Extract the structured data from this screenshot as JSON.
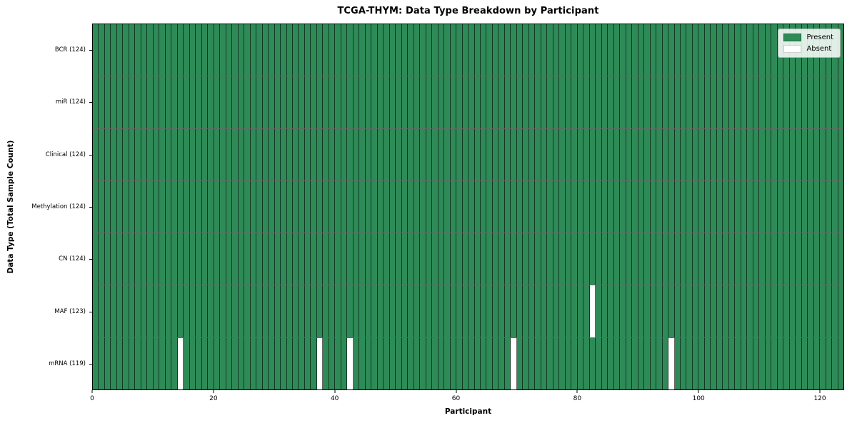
{
  "title": "TCGA-THYM: Data Type Breakdown by Participant",
  "axes": {
    "xlabel": "Participant",
    "ylabel": "Data Type (Total Sample Count)"
  },
  "legend": {
    "present_label": "Present",
    "absent_label": "Absent"
  },
  "colors": {
    "present": "#2e8b57",
    "absent": "#ffffff",
    "cell_edge": "rgba(0,0,0,0.6)",
    "axis_line": "#000000",
    "legend_bg": "rgba(255,255,255,0.85)",
    "legend_border": "#b3b3b3"
  },
  "chart_data": {
    "type": "heatmap",
    "title": "TCGA-THYM: Data Type Breakdown by Participant",
    "xlabel": "Participant",
    "ylabel": "Data Type (Total Sample Count)",
    "n_participants": 124,
    "x_range": [
      0,
      124
    ],
    "x_ticks": [
      0,
      20,
      40,
      60,
      80,
      100,
      120
    ],
    "legend": [
      "Present",
      "Absent"
    ],
    "legend_position": "upper right",
    "cell_states": {
      "present": 1,
      "absent": 0
    },
    "rows": [
      {
        "label": "BCR (124)",
        "data_type": "BCR",
        "total_samples": 124,
        "absent_participant_indices": []
      },
      {
        "label": "miR (124)",
        "data_type": "miR",
        "total_samples": 124,
        "absent_participant_indices": []
      },
      {
        "label": "Clinical (124)",
        "data_type": "Clinical",
        "total_samples": 124,
        "absent_participant_indices": []
      },
      {
        "label": "Methylation (124)",
        "data_type": "Methylation",
        "total_samples": 124,
        "absent_participant_indices": []
      },
      {
        "label": "CN (124)",
        "data_type": "CN",
        "total_samples": 124,
        "absent_participant_indices": []
      },
      {
        "label": "MAF (123)",
        "data_type": "MAF",
        "total_samples": 123,
        "absent_participant_indices": [
          82
        ]
      },
      {
        "label": "mRNA (119)",
        "data_type": "mRNA",
        "total_samples": 119,
        "absent_participant_indices": [
          14,
          37,
          42,
          69,
          95
        ]
      }
    ]
  }
}
